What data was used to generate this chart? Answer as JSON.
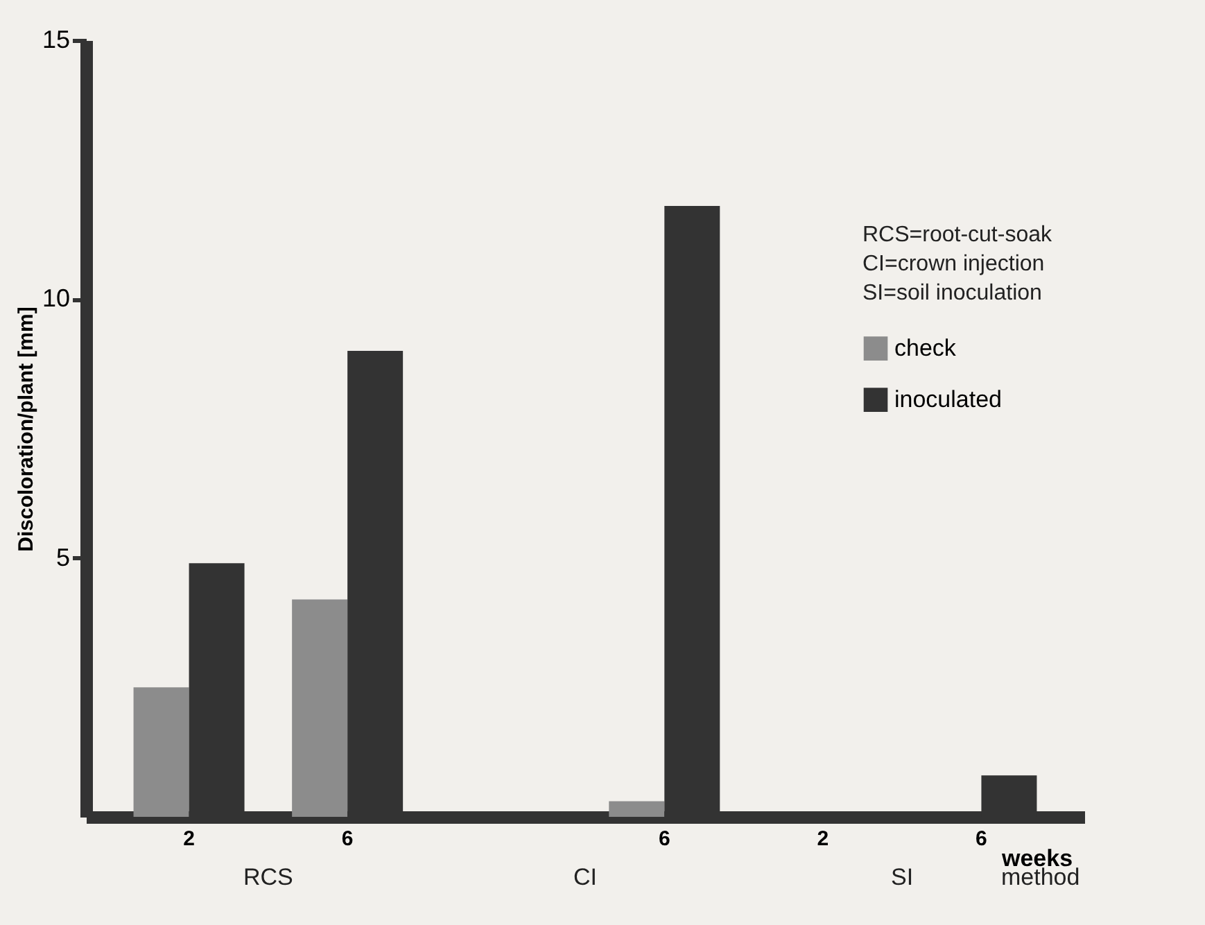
{
  "chart_data": {
    "type": "bar",
    "ylabel": "Discoloration/plant [mm]",
    "xlabel": "weeks",
    "categories": [
      "2",
      "6",
      null,
      "6",
      "2",
      "6"
    ],
    "series": [
      {
        "name": "check",
        "color": "#8c8c8c",
        "values": [
          2.5,
          4.2,
          null,
          0.3,
          null,
          null
        ]
      },
      {
        "name": "inoculated",
        "color": "#333333",
        "values": [
          4.9,
          9.0,
          null,
          11.8,
          null,
          0.8
        ]
      }
    ],
    "ylim": [
      0,
      15
    ],
    "yticks": [
      5,
      10,
      15
    ],
    "grid": false,
    "legend": "right",
    "annotations": [
      "RCS",
      "CI",
      "SI",
      "method",
      "RCS=root-cut-soak",
      "CI=crown injection",
      "SI=soil inoculation"
    ]
  }
}
